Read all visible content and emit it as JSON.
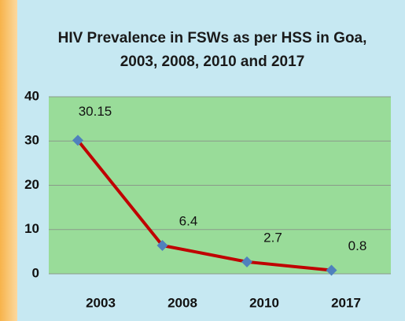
{
  "chart_data": {
    "type": "line",
    "title": "HIV Prevalence in FSWs as per HSS in Goa, 2003, 2008, 2010 and 2017",
    "categories": [
      "2003",
      "2008",
      "2010",
      "2017"
    ],
    "series": [
      {
        "name": "HIV Prevalence",
        "color": "#c00000",
        "marker_color": "#4f81bd",
        "values": [
          30.15,
          6.4,
          2.7,
          0.8
        ]
      }
    ],
    "ylim": [
      0,
      40
    ],
    "yticks": [
      0,
      10,
      20,
      30,
      40
    ],
    "grid": true,
    "plot_background": "#99dc99"
  }
}
